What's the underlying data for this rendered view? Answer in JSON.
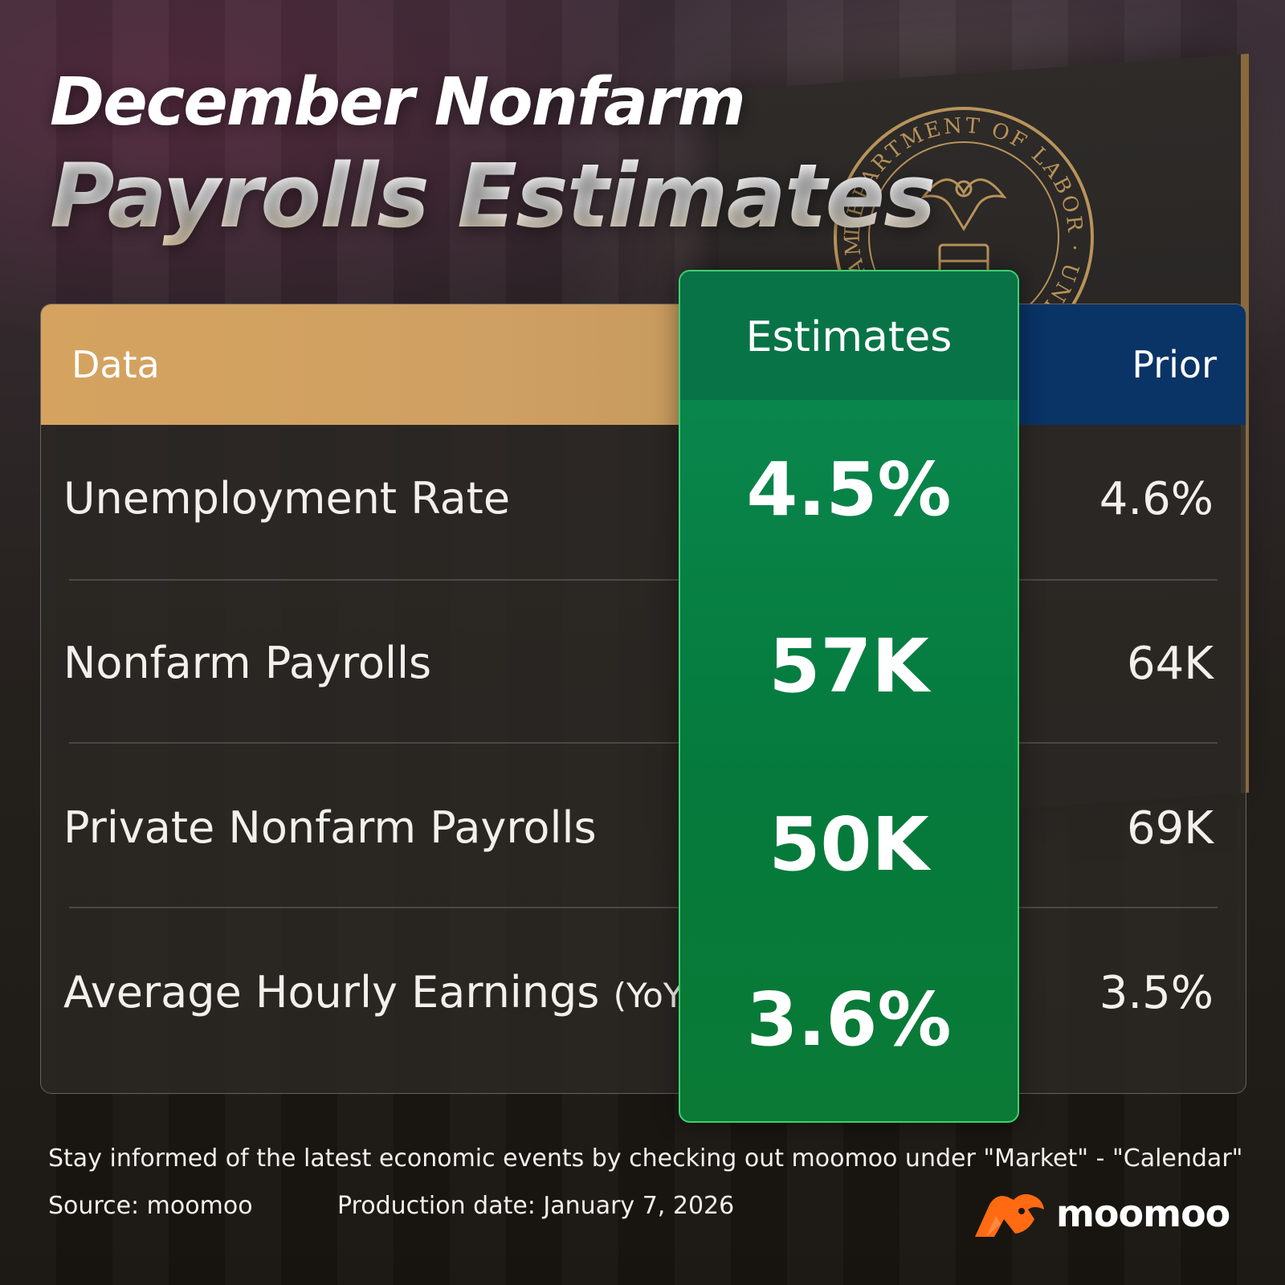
{
  "title": {
    "line1": "December Nonfarm",
    "line2": "Payrolls Estimates"
  },
  "seal": {
    "text": "DEPARTMENT OF LABOR · UNITED STATES OF AMERICA",
    "color": "#b8935a"
  },
  "chart_data": {
    "type": "table",
    "columns": [
      "Data",
      "Estimates",
      "Prior"
    ],
    "rows": [
      {
        "label": "Unemployment Rate",
        "qualifier": "",
        "estimate": "4.5%",
        "prior": "4.6%"
      },
      {
        "label": "Nonfarm Payrolls",
        "qualifier": "",
        "estimate": "57K",
        "prior": "64K"
      },
      {
        "label": "Private Nonfarm Payrolls",
        "qualifier": "",
        "estimate": "50K",
        "prior": "69K"
      },
      {
        "label": "Average Hourly Earnings",
        "qualifier": "(YoY)",
        "estimate": "3.6%",
        "prior": "3.5%"
      }
    ]
  },
  "colors": {
    "data_header": "#d5a35f",
    "estimates_column": "#07814a",
    "estimates_border": "#3fd06e",
    "prior_header": "#0a3366",
    "brand_orange": "#ff6a13"
  },
  "footer": {
    "note": "Stay informed of the latest economic events by checking out moomoo under \"Market\" - \"Calendar\"",
    "source": "Source: moomoo",
    "production_date": "Production date: January 7, 2026"
  },
  "brand": {
    "name": "moomoo",
    "icon": "moomoo-bull-icon"
  }
}
